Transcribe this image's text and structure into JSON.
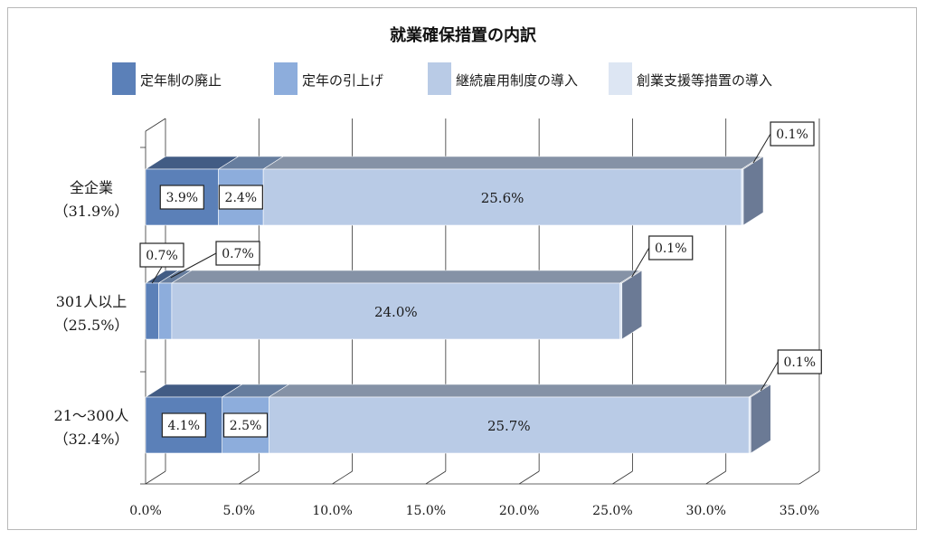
{
  "chart_data": {
    "type": "bar",
    "orientation": "horizontal",
    "stacked": true,
    "three_d": true,
    "title": "就業確保措置の内訳",
    "legend_position": "top",
    "categories": [
      {
        "name": "全企業",
        "total": "（31.9%）"
      },
      {
        "name": "301人以上",
        "total": "（25.5%）"
      },
      {
        "name": "21～300人",
        "total": "（32.4%）"
      }
    ],
    "series": [
      {
        "name": "定年制の廃止",
        "color": "#5b80b8",
        "values": [
          3.9,
          0.7,
          4.1
        ],
        "labels": [
          "3.9%",
          "0.7%",
          "4.1%"
        ]
      },
      {
        "name": "定年の引上げ",
        "color": "#8daddc",
        "values": [
          2.4,
          0.7,
          2.5
        ],
        "labels": [
          "2.4%",
          "0.7%",
          "2.5%"
        ]
      },
      {
        "name": "継続雇用制度の導入",
        "color": "#b9cbe6",
        "values": [
          25.6,
          24.0,
          25.7
        ],
        "labels": [
          "25.6%",
          "24.0%",
          "25.7%"
        ]
      },
      {
        "name": "創業支援等措置の導入",
        "color": "#dde6f3",
        "values": [
          0.1,
          0.1,
          0.1
        ],
        "labels": [
          "0.1%",
          "0.1%",
          "0.1%"
        ]
      }
    ],
    "xlim": [
      0,
      35
    ],
    "x_ticks": [
      "0.0%",
      "5.0%",
      "10.0%",
      "15.0%",
      "20.0%",
      "25.0%",
      "30.0%",
      "35.0%"
    ],
    "grid": true
  }
}
